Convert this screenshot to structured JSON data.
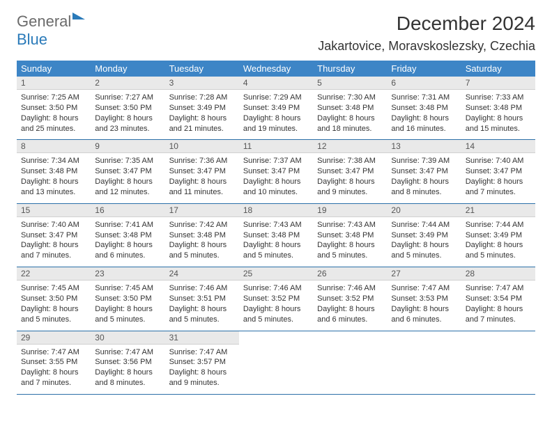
{
  "brand": {
    "main": "General",
    "sub": "Blue"
  },
  "title": "December 2024",
  "location": "Jakartovice, Moravskoslezsky, Czechia",
  "colors": {
    "header_bg": "#3d85c6",
    "header_text": "#ffffff",
    "daynum_bg": "#e9e9e9",
    "cell_border": "#2a6fa8",
    "brand_gray": "#6b6b6b",
    "brand_blue": "#2a7ab9",
    "body_text": "#333333",
    "background": "#ffffff"
  },
  "typography": {
    "title_fontsize": 28,
    "location_fontsize": 18,
    "dayheader_fontsize": 13,
    "daynum_fontsize": 12,
    "body_fontsize": 11
  },
  "layout": {
    "columns": 7,
    "rows": 5
  },
  "day_names": [
    "Sunday",
    "Monday",
    "Tuesday",
    "Wednesday",
    "Thursday",
    "Friday",
    "Saturday"
  ],
  "days": [
    {
      "n": "1",
      "sunrise": "7:25 AM",
      "sunset": "3:50 PM",
      "daylight": "8 hours and 25 minutes."
    },
    {
      "n": "2",
      "sunrise": "7:27 AM",
      "sunset": "3:50 PM",
      "daylight": "8 hours and 23 minutes."
    },
    {
      "n": "3",
      "sunrise": "7:28 AM",
      "sunset": "3:49 PM",
      "daylight": "8 hours and 21 minutes."
    },
    {
      "n": "4",
      "sunrise": "7:29 AM",
      "sunset": "3:49 PM",
      "daylight": "8 hours and 19 minutes."
    },
    {
      "n": "5",
      "sunrise": "7:30 AM",
      "sunset": "3:48 PM",
      "daylight": "8 hours and 18 minutes."
    },
    {
      "n": "6",
      "sunrise": "7:31 AM",
      "sunset": "3:48 PM",
      "daylight": "8 hours and 16 minutes."
    },
    {
      "n": "7",
      "sunrise": "7:33 AM",
      "sunset": "3:48 PM",
      "daylight": "8 hours and 15 minutes."
    },
    {
      "n": "8",
      "sunrise": "7:34 AM",
      "sunset": "3:48 PM",
      "daylight": "8 hours and 13 minutes."
    },
    {
      "n": "9",
      "sunrise": "7:35 AM",
      "sunset": "3:47 PM",
      "daylight": "8 hours and 12 minutes."
    },
    {
      "n": "10",
      "sunrise": "7:36 AM",
      "sunset": "3:47 PM",
      "daylight": "8 hours and 11 minutes."
    },
    {
      "n": "11",
      "sunrise": "7:37 AM",
      "sunset": "3:47 PM",
      "daylight": "8 hours and 10 minutes."
    },
    {
      "n": "12",
      "sunrise": "7:38 AM",
      "sunset": "3:47 PM",
      "daylight": "8 hours and 9 minutes."
    },
    {
      "n": "13",
      "sunrise": "7:39 AM",
      "sunset": "3:47 PM",
      "daylight": "8 hours and 8 minutes."
    },
    {
      "n": "14",
      "sunrise": "7:40 AM",
      "sunset": "3:47 PM",
      "daylight": "8 hours and 7 minutes."
    },
    {
      "n": "15",
      "sunrise": "7:40 AM",
      "sunset": "3:47 PM",
      "daylight": "8 hours and 7 minutes."
    },
    {
      "n": "16",
      "sunrise": "7:41 AM",
      "sunset": "3:48 PM",
      "daylight": "8 hours and 6 minutes."
    },
    {
      "n": "17",
      "sunrise": "7:42 AM",
      "sunset": "3:48 PM",
      "daylight": "8 hours and 5 minutes."
    },
    {
      "n": "18",
      "sunrise": "7:43 AM",
      "sunset": "3:48 PM",
      "daylight": "8 hours and 5 minutes."
    },
    {
      "n": "19",
      "sunrise": "7:43 AM",
      "sunset": "3:48 PM",
      "daylight": "8 hours and 5 minutes."
    },
    {
      "n": "20",
      "sunrise": "7:44 AM",
      "sunset": "3:49 PM",
      "daylight": "8 hours and 5 minutes."
    },
    {
      "n": "21",
      "sunrise": "7:44 AM",
      "sunset": "3:49 PM",
      "daylight": "8 hours and 5 minutes."
    },
    {
      "n": "22",
      "sunrise": "7:45 AM",
      "sunset": "3:50 PM",
      "daylight": "8 hours and 5 minutes."
    },
    {
      "n": "23",
      "sunrise": "7:45 AM",
      "sunset": "3:50 PM",
      "daylight": "8 hours and 5 minutes."
    },
    {
      "n": "24",
      "sunrise": "7:46 AM",
      "sunset": "3:51 PM",
      "daylight": "8 hours and 5 minutes."
    },
    {
      "n": "25",
      "sunrise": "7:46 AM",
      "sunset": "3:52 PM",
      "daylight": "8 hours and 5 minutes."
    },
    {
      "n": "26",
      "sunrise": "7:46 AM",
      "sunset": "3:52 PM",
      "daylight": "8 hours and 6 minutes."
    },
    {
      "n": "27",
      "sunrise": "7:47 AM",
      "sunset": "3:53 PM",
      "daylight": "8 hours and 6 minutes."
    },
    {
      "n": "28",
      "sunrise": "7:47 AM",
      "sunset": "3:54 PM",
      "daylight": "8 hours and 7 minutes."
    },
    {
      "n": "29",
      "sunrise": "7:47 AM",
      "sunset": "3:55 PM",
      "daylight": "8 hours and 7 minutes."
    },
    {
      "n": "30",
      "sunrise": "7:47 AM",
      "sunset": "3:56 PM",
      "daylight": "8 hours and 8 minutes."
    },
    {
      "n": "31",
      "sunrise": "7:47 AM",
      "sunset": "3:57 PM",
      "daylight": "8 hours and 9 minutes."
    }
  ]
}
